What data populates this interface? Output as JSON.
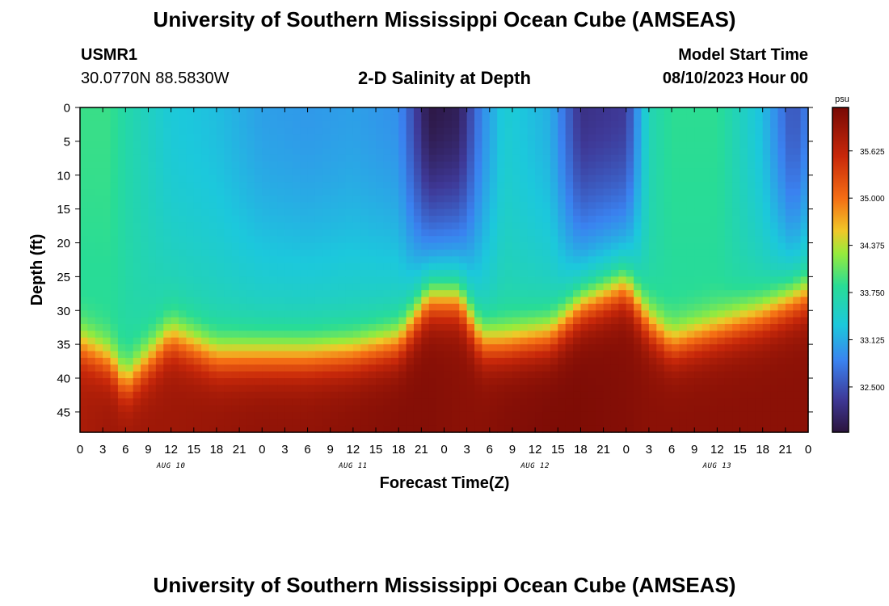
{
  "header": {
    "title": "University of Southern Mississippi Ocean Cube (AMSEAS)",
    "station_id": "USMR1",
    "station_coords": "30.0770N  88.5830W",
    "plot_title": "2-D Salinity at Depth",
    "model_start_label": "Model Start Time",
    "model_start_value": "08/10/2023 Hour 00"
  },
  "footer": {
    "title": "University of Southern Mississippi Ocean Cube (AMSEAS)"
  },
  "chart_data": {
    "type": "heatmap",
    "title": "2-D Salinity at Depth",
    "xlabel": "Forecast Time(Z)",
    "ylabel": "Depth (ft)",
    "x_ticks": [
      "0",
      "3",
      "6",
      "9",
      "12",
      "15",
      "18",
      "21",
      "0",
      "3",
      "6",
      "9",
      "12",
      "15",
      "18",
      "21",
      "0",
      "3",
      "6",
      "9",
      "12",
      "15",
      "18",
      "21",
      "0",
      "3",
      "6",
      "9",
      "12",
      "15",
      "18",
      "21",
      "0"
    ],
    "x_range_hours": [
      0,
      96
    ],
    "day_labels": [
      {
        "label": "AUG 10",
        "hour": 12
      },
      {
        "label": "AUG 11",
        "hour": 36
      },
      {
        "label": "AUG 12",
        "hour": 60
      },
      {
        "label": "AUG 13",
        "hour": 84
      }
    ],
    "y_ticks": [
      "0",
      "5",
      "10",
      "15",
      "20",
      "25",
      "30",
      "35",
      "40",
      "45"
    ],
    "y_range_ft": [
      0,
      48
    ],
    "colorbar": {
      "units": "psu",
      "min": 31.9,
      "max": 36.2,
      "ticks": [
        "35.625",
        "35.000",
        "34.375",
        "33.750",
        "33.125",
        "32.500"
      ]
    },
    "hours": [
      0,
      4,
      6,
      12,
      18,
      24,
      30,
      36,
      42,
      46,
      50,
      53,
      56,
      62,
      66,
      72,
      75,
      78,
      84,
      90,
      94,
      96
    ],
    "thermocline_depth_ft": [
      35,
      37.5,
      41,
      34,
      37,
      37,
      37,
      36.5,
      35,
      29,
      29,
      35,
      35,
      34,
      30,
      27,
      32,
      35,
      33,
      31,
      29,
      28
    ],
    "surface_salinity_psu": [
      33.9,
      33.9,
      33.7,
      33.35,
      33.25,
      33.05,
      33.0,
      33.05,
      32.95,
      31.95,
      32.05,
      32.9,
      33.4,
      33.15,
      32.25,
      32.35,
      33.6,
      33.85,
      33.85,
      33.25,
      32.5,
      32.85
    ],
    "bottom_salinity_psu": [
      35.8,
      35.9,
      35.9,
      35.9,
      35.95,
      36.0,
      36.0,
      36.05,
      36.1,
      36.1,
      36.05,
      36.05,
      36.1,
      36.15,
      36.15,
      36.1,
      36.05,
      36.05,
      36.05,
      36.05,
      36.05,
      36.05
    ]
  }
}
